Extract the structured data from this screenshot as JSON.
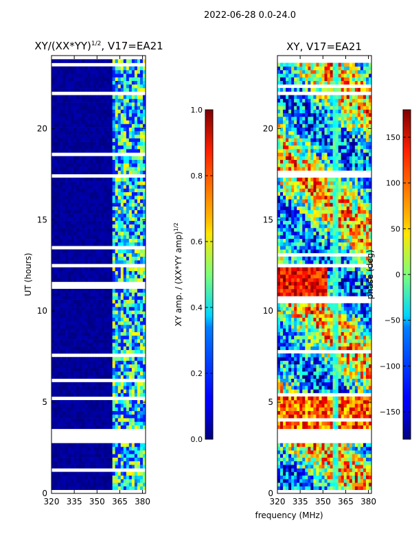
{
  "suptitle": "2022-06-28 0.0-24.0",
  "xlabel_shared": "frequency (MHz)",
  "colors": {
    "heat_low": "#00007f",
    "heat_mid_blue": "#0050ff",
    "heat_cyan": "#00d5ff",
    "heat_green": "#7dff7a",
    "heat_yellow": "#ffe600",
    "heat_orange": "#ff6a00",
    "heat_high": "#7f0000",
    "gap": "#ffffff"
  },
  "chart_data": [
    {
      "type": "heatmap",
      "title_main": "XY/(XX*YY)",
      "title_sup": "1/2",
      "title_rest": ", V17=EA21",
      "ylabel": "UT (hours)",
      "xlim": [
        320,
        382
      ],
      "ylim": [
        0,
        24
      ],
      "xticks": [
        "320",
        "335",
        "350",
        "365",
        "380"
      ],
      "xtick_values": [
        320,
        335,
        350,
        365,
        380
      ],
      "yticks": [
        "0",
        "5",
        "10",
        "15",
        "20"
      ],
      "ytick_values": [
        0,
        5,
        10,
        15,
        20
      ],
      "colormap": "jet",
      "value_range": [
        0.0,
        1.0
      ],
      "data_span_hours": [
        0.2,
        23.8
      ],
      "bright_band_mhz": [
        360,
        382
      ],
      "typical_level": 0.05,
      "band_level": 0.45,
      "gaps_hours": [
        [
          2.7,
          3.5
        ],
        [
          12.3,
          12.6
        ],
        [
          17.3,
          17.6
        ],
        [
          21.9,
          22.1
        ]
      ],
      "colorbar": {
        "label_main": "XY amp. / (XX*YY amp)",
        "label_sup": "1/2",
        "ticks": [
          "0.0",
          "0.2",
          "0.4",
          "0.6",
          "0.8",
          "1.0"
        ],
        "tick_values": [
          0.0,
          0.2,
          0.4,
          0.6,
          0.8,
          1.0
        ]
      }
    },
    {
      "type": "heatmap",
      "title": "XY, V17=EA21",
      "xlim": [
        320,
        382
      ],
      "ylim": [
        0,
        24
      ],
      "xticks": [
        "320",
        "335",
        "350",
        "365",
        "380"
      ],
      "xtick_values": [
        320,
        335,
        350,
        365,
        380
      ],
      "yticks": [
        "0",
        "5",
        "10",
        "15",
        "20"
      ],
      "ytick_values": [
        0,
        5,
        10,
        15,
        20
      ],
      "colormap": "jet",
      "value_range": [
        -180,
        180
      ],
      "data_span_hours": [
        0.2,
        23.8
      ],
      "gaps_hours": [
        [
          2.7,
          3.5
        ],
        [
          12.3,
          12.6
        ],
        [
          17.3,
          17.6
        ],
        [
          21.9,
          22.1
        ]
      ],
      "colorbar": {
        "label": "phase (deg)",
        "ticks": [
          "−150",
          "−100",
          "−50",
          "0",
          "50",
          "100",
          "150"
        ],
        "tick_values": [
          -150,
          -100,
          -50,
          0,
          50,
          100,
          150
        ]
      }
    }
  ]
}
